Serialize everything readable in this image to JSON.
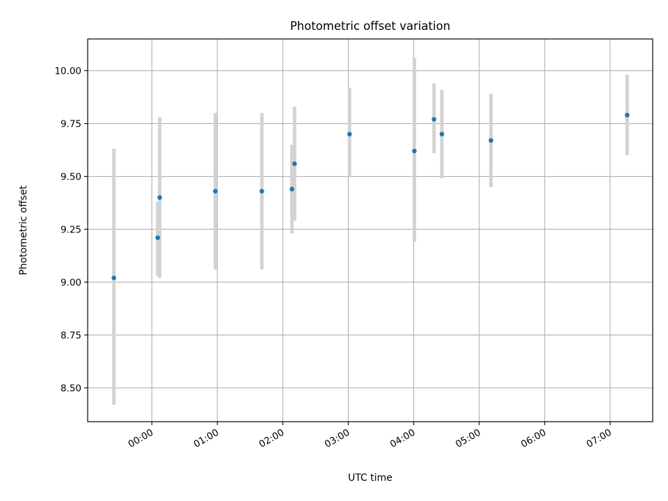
{
  "chart_data": {
    "type": "scatter",
    "title": "Photometric offset variation",
    "xlabel": "UTC time",
    "ylabel": "Photometric offset",
    "grid": true,
    "x_unit": "hours since 00:00 UTC",
    "xlim": [
      -0.98,
      7.65
    ],
    "ylim": [
      8.34,
      10.15
    ],
    "x_ticks": [
      {
        "value": 0,
        "label": "00:00"
      },
      {
        "value": 1,
        "label": "01:00"
      },
      {
        "value": 2,
        "label": "02:00"
      },
      {
        "value": 3,
        "label": "03:00"
      },
      {
        "value": 4,
        "label": "04:00"
      },
      {
        "value": 5,
        "label": "05:00"
      },
      {
        "value": 6,
        "label": "06:00"
      },
      {
        "value": 7,
        "label": "07:00"
      }
    ],
    "y_ticks": [
      {
        "value": 8.5,
        "label": "8.50"
      },
      {
        "value": 8.75,
        "label": "8.75"
      },
      {
        "value": 9.0,
        "label": "9.00"
      },
      {
        "value": 9.25,
        "label": "9.25"
      },
      {
        "value": 9.5,
        "label": "9.50"
      },
      {
        "value": 9.75,
        "label": "9.75"
      },
      {
        "value": 10.0,
        "label": "10.00"
      }
    ],
    "colors": {
      "point": "#1f77b4",
      "errorbar": "#d3d3d3",
      "grid": "#b0b0b0",
      "axes": "#000000"
    },
    "points": [
      {
        "x": -0.58,
        "y": 9.02,
        "err_low": 8.42,
        "err_high": 9.63
      },
      {
        "x": 0.09,
        "y": 9.21,
        "err_low": 9.03,
        "err_high": 9.38
      },
      {
        "x": 0.12,
        "y": 9.4,
        "err_low": 9.02,
        "err_high": 9.78
      },
      {
        "x": 0.97,
        "y": 9.43,
        "err_low": 9.06,
        "err_high": 9.8
      },
      {
        "x": 1.68,
        "y": 9.43,
        "err_low": 9.06,
        "err_high": 9.8
      },
      {
        "x": 2.14,
        "y": 9.44,
        "err_low": 9.23,
        "err_high": 9.65
      },
      {
        "x": 2.18,
        "y": 9.56,
        "err_low": 9.29,
        "err_high": 9.83
      },
      {
        "x": 3.02,
        "y": 9.7,
        "err_low": 9.5,
        "err_high": 9.92
      },
      {
        "x": 4.01,
        "y": 9.62,
        "err_low": 9.19,
        "err_high": 10.06
      },
      {
        "x": 4.31,
        "y": 9.77,
        "err_low": 9.61,
        "err_high": 9.94
      },
      {
        "x": 4.43,
        "y": 9.7,
        "err_low": 9.49,
        "err_high": 9.91
      },
      {
        "x": 5.18,
        "y": 9.67,
        "err_low": 9.45,
        "err_high": 9.89
      },
      {
        "x": 7.26,
        "y": 9.79,
        "err_low": 9.6,
        "err_high": 9.98
      }
    ]
  }
}
